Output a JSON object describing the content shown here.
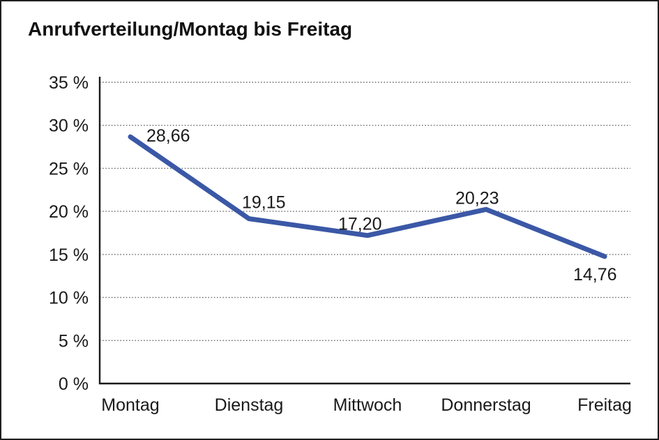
{
  "window": {
    "background": "#ffffff",
    "border_color": "#1f1f1f"
  },
  "chart_data": {
    "type": "line",
    "title": "Anrufverteilung/Montag bis Freitag",
    "categories": [
      "Montag",
      "Dienstag",
      "Mittwoch",
      "Donnerstag",
      "Freitag"
    ],
    "values": [
      28.66,
      19.15,
      17.2,
      20.23,
      14.76
    ],
    "value_labels": [
      "28,66",
      "19,15",
      "17,20",
      "20,23",
      "14,76"
    ],
    "unit": "%",
    "xlabel": "",
    "ylabel": "",
    "ylim": [
      0,
      35
    ],
    "y_tick_step": 5,
    "y_tick_labels": [
      "0 %",
      "5 %",
      "10 %",
      "15 %",
      "20 %",
      "25 %",
      "30 %",
      "35 %"
    ],
    "grid": "horizontal-dotted",
    "legend_position": "none",
    "line_color": "#3B58A6",
    "axis_color": "#1a1a1a",
    "gridline_color": "#6a6a6a",
    "text_color": "#1a1a1a"
  }
}
